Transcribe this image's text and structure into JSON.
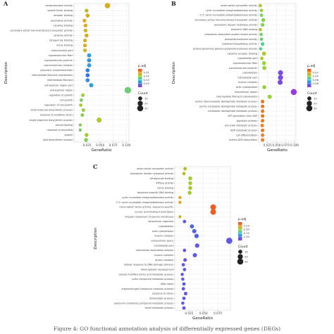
{
  "caption": "Figure 4: GO functional annotation analysis of differentially expressed genes (DEGs)",
  "chart_data": [
    {
      "type": "scatter",
      "panel": "A",
      "xlabel": "GeneRatio",
      "ylabel": "Description",
      "xlim": [
        0.0,
        0.105
      ],
      "xticks": [
        0.025,
        0.05,
        0.075,
        0.1
      ],
      "xtick_labels": [
        "0.025",
        "0.050",
        "0.075",
        "0.100"
      ],
      "color_legend": {
        "title": "p.adj",
        "ticks": [
          "0.01",
          "0.02",
          "0.03",
          "0.04"
        ],
        "gradient": [
          "#e8442a",
          "#e8a020",
          "#9cd03a",
          "#38c8d0",
          "#3a6fe0",
          "#9b3ad8"
        ]
      },
      "size_legend": {
        "title": "Count",
        "values": [
          10,
          20,
          30
        ]
      },
      "terms": [
        "oxidoreductase activity",
        "growth factor binding",
        "receptor binding",
        "peroxidase activity",
        "cytokine binding",
        "secondary active transmembrane transporter activity",
        "cytokine activity",
        "tetrapyrrole binding",
        "heme binding",
        "mitochondrial part",
        "supramolecular fiber",
        "supramolecular polymer",
        "supramolecular complex",
        "polymeric cytoskeletal fiber",
        "intermediate filament cytoskeleton",
        "intermediate filament",
        "extracellular region part",
        "extracellular region",
        "regulation of growth",
        "cell growth",
        "regulation of cell growth",
        "small molecule biosynthetic process",
        "response to oxidative stress",
        "single-organism biosynthetic process",
        "wound healing",
        "response to wounding",
        "growth",
        "lipid biosynthetic process"
      ],
      "x": [
        0.064,
        0.024,
        0.026,
        0.02,
        0.022,
        0.022,
        0.024,
        0.021,
        0.021,
        0.021,
        0.029,
        0.029,
        0.029,
        0.026,
        0.026,
        0.026,
        0.033,
        0.103,
        0.017,
        0.014,
        0.013,
        0.018,
        0.016,
        0.048,
        0.012,
        0.012,
        0.024,
        0.023
      ],
      "count": [
        22,
        9,
        10,
        8,
        8,
        8,
        9,
        8,
        8,
        8,
        11,
        11,
        11,
        10,
        10,
        10,
        12,
        37,
        7,
        6,
        6,
        7,
        7,
        18,
        5,
        5,
        9,
        9
      ],
      "padj": [
        0.011,
        0.013,
        0.011,
        0.01,
        0.01,
        0.012,
        0.011,
        0.011,
        0.011,
        0.012,
        0.03,
        0.031,
        0.03,
        0.033,
        0.034,
        0.032,
        0.03,
        0.021,
        0.017,
        0.02,
        0.016,
        0.018,
        0.019,
        0.015,
        0.019,
        0.02,
        0.016,
        0.019
      ]
    },
    {
      "type": "scatter",
      "panel": "B",
      "xlabel": "GeneRatio",
      "ylabel": "Description",
      "xlim": [
        0.0,
        0.104
      ],
      "xticks": [
        0.025,
        0.05,
        0.075,
        0.1
      ],
      "xtick_labels": [
        "0.025",
        "0.050",
        "0.075",
        "0.100"
      ],
      "color_legend": {
        "title": "p.adj",
        "ticks": [
          "0.02",
          "0.04",
          "0.06",
          "0.08"
        ],
        "gradient": [
          "#e8442a",
          "#e8a020",
          "#9cd03a",
          "#38c8d0",
          "#3a6fe0",
          "#9b3ad8"
        ]
      },
      "size_legend": {
        "title": "Count",
        "values": [
          10,
          20,
          30
        ]
      },
      "terms": [
        "anion:cation symporter activity",
        "cyclic nucleotide phosphodiesterase activity",
        "3',5'-cyclic-nucleotide phosphodiesterase activity",
        "secondary active transmembrane transporter activity",
        "phosphoric diester hydrolase activity",
        "telomeric DNA binding",
        "calmodulin-dependent protein kinase activity",
        "phosphotransferase activity",
        "metalloendopeptidase activity",
        "protein-glutamine gamma-glutamyltransferase activity",
        "cytokine receptor binding",
        "cytoskeletal part",
        "supramolecular fiber",
        "supramolecular polymer",
        "cytoskeleton",
        "cytoskeletal part",
        "myosin complex",
        "actin cytoskeleton",
        "extracellular region",
        "intermediate filament cytoskeleton",
        "purine ribonucleoside diphosphate metabolic process",
        "purine nucleoside diphosphate metabolic process",
        "nucleoside diphosphate metabolic process",
        "ATP generation from ADP",
        "glycolytic process",
        "pyruvate metabolic process",
        "ADP metabolic process",
        "cell differentiation",
        "protein ADP-ribosylation"
      ],
      "x": [
        0.005,
        0.008,
        0.008,
        0.013,
        0.011,
        0.005,
        0.007,
        0.008,
        0.011,
        0.006,
        0.015,
        0.009,
        0.015,
        0.016,
        0.061,
        0.061,
        0.06,
        0.016,
        0.098,
        0.031,
        0.011,
        0.011,
        0.011,
        0.011,
        0.011,
        0.01,
        0.011,
        0.011,
        0.011
      ],
      "count": [
        5,
        6,
        6,
        9,
        8,
        5,
        6,
        6,
        8,
        5,
        10,
        6,
        10,
        10,
        19,
        19,
        18,
        10,
        30,
        11,
        7,
        7,
        7,
        7,
        7,
        7,
        7,
        7,
        7
      ],
      "padj": [
        0.03,
        0.035,
        0.04,
        0.038,
        0.038,
        0.03,
        0.04,
        0.042,
        0.045,
        0.045,
        0.03,
        0.03,
        0.035,
        0.035,
        0.08,
        0.08,
        0.08,
        0.035,
        0.085,
        0.035,
        0.01,
        0.01,
        0.01,
        0.01,
        0.01,
        0.012,
        0.01,
        0.012,
        0.012
      ]
    },
    {
      "type": "scatter",
      "panel": "C",
      "xlabel": "GeneRatio",
      "ylabel": "Description",
      "xlim": [
        0.0,
        0.097
      ],
      "xticks": [
        0.025,
        0.05,
        0.075
      ],
      "xtick_labels": [
        "0.025",
        "0.050",
        "0.075"
      ],
      "color_legend": {
        "title": "p.adj",
        "ticks": [
          "0.25",
          "0.50",
          "0.75",
          "1.00"
        ],
        "gradient": [
          "#e8442a",
          "#e8a020",
          "#9cd03a",
          "#38c8d0",
          "#3a6fe0",
          "#9b3ad8"
        ]
      },
      "size_legend": {
        "title": "Count",
        "values": [
          10,
          20,
          30
        ]
      },
      "terms": [
        "anion:cation symporter activity",
        "phosphoric diester hydrolase activity",
        "tetrapyrrole binding",
        "ATPase activity",
        "heme binding",
        "sequence-specific DNA binding",
        "cyclic nucleotide phosphodiesterase activity",
        "3',5'-cyclic-nucleotide phosphodiesterase activity",
        "transcription factor activity, sequence-specific",
        "nucleic acid binding transcription",
        "integral component of plasma membrane",
        "intracellular organelle",
        "cytoskeleton",
        "actin cytoskeleton",
        "myosin complex",
        "extracellular space",
        "cytoskeletal part",
        "intercellular associated complex",
        "myosin complex",
        "dynein complex",
        "cellular response to DNA damage stimulus",
        "telencephalon development",
        "cellular modified amino acid metabolic process",
        "sulfur compound metabolic process",
        "DNA repair",
        "organonitrogen compound catabolic process",
        "response to stress",
        "homeostatic process",
        "porphyrin-containing compound metabolic process",
        "heme metabolic process"
      ],
      "x": [
        0.018,
        0.016,
        0.027,
        0.027,
        0.027,
        0.026,
        0.009,
        0.009,
        0.067,
        0.067,
        0.009,
        0.017,
        0.03,
        0.034,
        0.038,
        0.095,
        0.039,
        0.017,
        0.035,
        0.018,
        0.015,
        0.017,
        0.013,
        0.014,
        0.016,
        0.015,
        0.019,
        0.016,
        0.014,
        0.016
      ],
      "count": [
        7,
        6,
        9,
        9,
        9,
        9,
        4,
        4,
        25,
        25,
        4,
        6,
        11,
        12,
        13,
        32,
        13,
        6,
        12,
        7,
        6,
        6,
        5,
        5,
        6,
        6,
        7,
        6,
        5,
        6
      ],
      "padj": [
        0.35,
        0.35,
        0.4,
        0.4,
        0.4,
        0.4,
        0.2,
        0.2,
        0.06,
        0.06,
        0.3,
        0.95,
        0.9,
        0.92,
        0.92,
        0.95,
        0.95,
        0.95,
        0.95,
        0.95,
        0.95,
        0.95,
        0.95,
        0.95,
        0.95,
        0.95,
        0.95,
        0.95,
        0.95,
        0.95
      ]
    }
  ]
}
